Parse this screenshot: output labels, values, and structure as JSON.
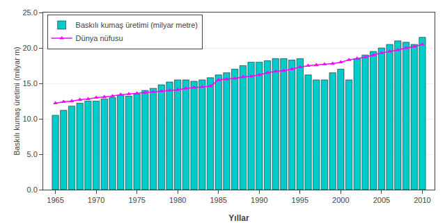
{
  "chart_data": {
    "type": "bar",
    "x": [
      1965,
      1966,
      1967,
      1968,
      1969,
      1970,
      1971,
      1972,
      1973,
      1974,
      1975,
      1976,
      1977,
      1978,
      1979,
      1980,
      1981,
      1982,
      1983,
      1984,
      1985,
      1986,
      1987,
      1988,
      1989,
      1990,
      1991,
      1992,
      1993,
      1994,
      1995,
      1996,
      1997,
      1998,
      1999,
      2000,
      2001,
      2002,
      2003,
      2004,
      2005,
      2006,
      2007,
      2008,
      2009,
      2010
    ],
    "series": [
      {
        "name": "Baskılı kumaş üretimi (milyar metre)",
        "type": "bar",
        "color": "#00CCCC",
        "values": [
          10.5,
          11.2,
          11.8,
          12.2,
          12.5,
          12.5,
          12.8,
          13.0,
          13.3,
          13.2,
          13.5,
          14.0,
          14.3,
          14.8,
          15.2,
          15.5,
          15.5,
          15.3,
          15.5,
          15.8,
          16.2,
          16.5,
          17.0,
          17.5,
          18.0,
          18.0,
          18.2,
          18.5,
          18.5,
          18.3,
          18.5,
          16.2,
          15.5,
          15.5,
          16.5,
          17.0,
          15.5,
          18.5,
          19.0,
          19.5,
          20.0,
          20.5,
          21.0,
          20.8,
          20.5,
          21.5
        ]
      },
      {
        "name": "Dünya nüfusu",
        "type": "line",
        "color": "#FF00FF",
        "marker": "triangle-up",
        "values": [
          12.2,
          12.4,
          12.5,
          12.7,
          12.8,
          13.0,
          13.1,
          13.2,
          13.4,
          13.5,
          13.6,
          13.7,
          13.8,
          13.9,
          14.0,
          14.1,
          14.3,
          14.4,
          14.5,
          14.6,
          15.5,
          15.6,
          15.7,
          15.9,
          16.0,
          16.2,
          16.5,
          16.7,
          16.8,
          17.0,
          17.3,
          17.5,
          17.6,
          17.7,
          17.8,
          18.0,
          18.3,
          18.5,
          18.7,
          19.0,
          19.3,
          19.5,
          19.7,
          20.0,
          20.2,
          20.5
        ]
      }
    ],
    "xlabel": "Yıllar",
    "ylabel": "Baskılı kumaş üretimi (milyar m)",
    "xlim": [
      1963.5,
      2011.5
    ],
    "xticks": [
      1965,
      1970,
      1975,
      1980,
      1985,
      1990,
      1995,
      2000,
      2005,
      2010
    ],
    "ylim": [
      0,
      25.0
    ],
    "yticks": [
      {
        "value": 0.0,
        "label": "0.0"
      },
      {
        "value": 5.0,
        "label": "5.0"
      },
      {
        "value": 10.0,
        "label": "10.0"
      },
      {
        "value": 15.0,
        "label": "15.0"
      },
      {
        "value": 20.0,
        "label": "20.0"
      },
      {
        "value": 25.0,
        "label": "25.0"
      }
    ],
    "grid": "y",
    "legend": "upper left"
  }
}
